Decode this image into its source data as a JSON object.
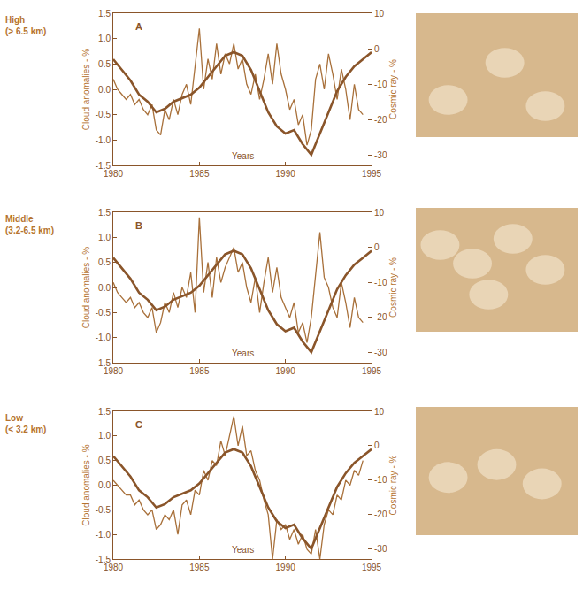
{
  "chart_data": [
    {
      "type": "line",
      "title": "High (> 6.5 km)",
      "panel": "A",
      "xlabel": "Years",
      "ylabel": "Cloud anomalies - %",
      "y2label": "Cosmic ray - %",
      "xlim": [
        1980,
        1995
      ],
      "xticks": [
        1980,
        1985,
        1990,
        1995
      ],
      "ylim": [
        -1.5,
        1.5
      ],
      "yticks": [
        -1.5,
        {
          "value": -1,
          "label": "-1.0"
        },
        -0.5,
        {
          "value": 0,
          "label": "0.0"
        },
        0.5,
        {
          "value": 1,
          "label": "1.0"
        },
        1.5
      ],
      "y2lim": [
        -33,
        10
      ],
      "y2ticks": [
        -30,
        -20,
        -10,
        0,
        10
      ],
      "grid": false,
      "series": [
        {
          "color": "#a8703a",
          "line_style": "solid",
          "x": [
            1980.0,
            1980.25,
            1980.5,
            1980.75,
            1981.0,
            1981.25,
            1981.5,
            1981.75,
            1982.0,
            1982.25,
            1982.5,
            1982.75,
            1983.0,
            1983.25,
            1983.5,
            1983.75,
            1984.0,
            1984.25,
            1984.5,
            1984.75,
            1985.0,
            1985.25,
            1985.5,
            1985.75,
            1986.0,
            1986.25,
            1986.5,
            1986.75,
            1987.0,
            1987.25,
            1987.5,
            1987.75,
            1988.0,
            1988.25,
            1988.5,
            1988.75,
            1989.0,
            1989.25,
            1989.5,
            1989.75,
            1990.0,
            1990.25,
            1990.5,
            1990.75,
            1991.0,
            1991.25,
            1991.5,
            1991.75,
            1992.0,
            1992.25,
            1992.5,
            1992.75,
            1993.0,
            1993.25,
            1993.5,
            1993.75,
            1994.0,
            1994.25,
            1994.5
          ],
          "values": [
            0.2,
            0.0,
            -0.1,
            -0.2,
            -0.1,
            -0.3,
            -0.2,
            -0.4,
            -0.5,
            -0.3,
            -0.8,
            -0.9,
            -0.4,
            -0.6,
            -0.2,
            -0.5,
            -0.1,
            0.1,
            -0.3,
            0.4,
            1.2,
            0.0,
            0.6,
            0.2,
            0.9,
            0.3,
            0.7,
            0.5,
            0.9,
            0.4,
            0.6,
            0.1,
            -0.1,
            0.3,
            -0.2,
            0.2,
            0.7,
            0.1,
            0.9,
            0.3,
            0.0,
            -0.4,
            -0.2,
            -0.7,
            -0.5,
            -1.1,
            -0.8,
            0.2,
            0.5,
            0.0,
            0.7,
            0.3,
            -0.2,
            0.4,
            0.0,
            -0.6,
            0.1,
            -0.4,
            -0.5
          ]
        },
        {
          "color": "#8a552a",
          "line_style": "solid",
          "axis": "y2",
          "x": [
            1980.0,
            1980.5,
            1981.0,
            1981.5,
            1982.0,
            1982.5,
            1983.0,
            1983.5,
            1984.0,
            1984.5,
            1985.0,
            1985.5,
            1986.0,
            1986.5,
            1987.0,
            1987.5,
            1988.0,
            1988.5,
            1989.0,
            1989.5,
            1990.0,
            1990.5,
            1991.0,
            1991.5,
            1992.0,
            1992.5,
            1993.0,
            1993.5,
            1994.0,
            1994.5,
            1995.0
          ],
          "values": [
            -3,
            -6,
            -9,
            -13,
            -15,
            -18,
            -17,
            -15,
            -14,
            -13,
            -11,
            -8,
            -5,
            -2,
            -1,
            -2,
            -6,
            -12,
            -18,
            -22,
            -24,
            -23,
            -27,
            -30,
            -24,
            -18,
            -12,
            -8,
            -5,
            -3,
            -1
          ]
        }
      ]
    },
    {
      "type": "line",
      "title": "Middle (3.2-6.5 km)",
      "panel": "B",
      "xlabel": "Years",
      "ylabel": "Cloud anomalies - %",
      "y2label": "Cosmic ray - %",
      "xlim": [
        1980,
        1995
      ],
      "xticks": [
        1980,
        1985,
        1990,
        1995
      ],
      "ylim": [
        -1.5,
        1.5
      ],
      "yticks": [
        -1.5,
        {
          "value": -1,
          "label": "-1.0"
        },
        -0.5,
        {
          "value": 0,
          "label": "0.0"
        },
        0.5,
        {
          "value": 1,
          "label": "1.0"
        },
        1.5
      ],
      "y2lim": [
        -33,
        10
      ],
      "y2ticks": [
        -30,
        -20,
        -10,
        0,
        10
      ],
      "grid": false,
      "series": [
        {
          "color": "#a8703a",
          "line_style": "solid",
          "x": [
            1980.0,
            1980.25,
            1980.5,
            1980.75,
            1981.0,
            1981.25,
            1981.5,
            1981.75,
            1982.0,
            1982.25,
            1982.5,
            1982.75,
            1983.0,
            1983.25,
            1983.5,
            1983.75,
            1984.0,
            1984.25,
            1984.5,
            1984.75,
            1985.0,
            1985.25,
            1985.5,
            1985.75,
            1986.0,
            1986.25,
            1986.5,
            1986.75,
            1987.0,
            1987.25,
            1987.5,
            1987.75,
            1988.0,
            1988.25,
            1988.5,
            1988.75,
            1989.0,
            1989.25,
            1989.5,
            1989.75,
            1990.0,
            1990.25,
            1990.5,
            1990.75,
            1991.0,
            1991.25,
            1991.5,
            1991.75,
            1992.0,
            1992.25,
            1992.5,
            1992.75,
            1993.0,
            1993.25,
            1993.5,
            1993.75,
            1994.0,
            1994.25,
            1994.5
          ],
          "values": [
            0.1,
            -0.1,
            -0.2,
            -0.3,
            -0.2,
            -0.4,
            -0.3,
            -0.5,
            -0.6,
            -0.4,
            -0.9,
            -0.7,
            -0.3,
            -0.5,
            -0.1,
            -0.4,
            0.0,
            -0.2,
            0.3,
            -0.5,
            1.4,
            -0.1,
            0.5,
            -0.2,
            0.6,
            0.1,
            0.4,
            0.6,
            0.8,
            0.3,
            0.5,
            0.0,
            -0.3,
            0.2,
            -0.5,
            0.1,
            0.6,
            -0.1,
            0.4,
            -0.2,
            -0.4,
            -0.6,
            -0.3,
            -0.9,
            -0.7,
            -1.1,
            -0.6,
            0.3,
            1.1,
            0.2,
            0.0,
            -0.4,
            -0.6,
            0.1,
            -0.3,
            -0.8,
            -0.2,
            -0.6,
            -0.7
          ]
        },
        {
          "color": "#8a552a",
          "line_style": "solid",
          "axis": "y2",
          "x": [
            1980.0,
            1980.5,
            1981.0,
            1981.5,
            1982.0,
            1982.5,
            1983.0,
            1983.5,
            1984.0,
            1984.5,
            1985.0,
            1985.5,
            1986.0,
            1986.5,
            1987.0,
            1987.5,
            1988.0,
            1988.5,
            1989.0,
            1989.5,
            1990.0,
            1990.5,
            1991.0,
            1991.5,
            1992.0,
            1992.5,
            1993.0,
            1993.5,
            1994.0,
            1994.5,
            1995.0
          ],
          "values": [
            -3,
            -6,
            -9,
            -13,
            -15,
            -18,
            -17,
            -15,
            -14,
            -13,
            -11,
            -8,
            -5,
            -2,
            -1,
            -2,
            -6,
            -12,
            -18,
            -22,
            -24,
            -23,
            -27,
            -30,
            -24,
            -18,
            -12,
            -8,
            -5,
            -3,
            -1
          ]
        }
      ]
    },
    {
      "type": "line",
      "title": "Low (< 3.2 km)",
      "panel": "C",
      "xlabel": "Years",
      "ylabel": "Cloud anomalies - %",
      "y2label": "Cosmic ray - %",
      "xlim": [
        1980,
        1995
      ],
      "xticks": [
        1980,
        1985,
        1990,
        1995
      ],
      "ylim": [
        -1.5,
        1.5
      ],
      "yticks": [
        -1.5,
        {
          "value": -1,
          "label": "-1.0"
        },
        -0.5,
        {
          "value": 0,
          "label": "0.0"
        },
        0.5,
        {
          "value": 1,
          "label": "1.0"
        },
        1.5
      ],
      "y2lim": [
        -33,
        10
      ],
      "y2ticks": [
        -30,
        -20,
        -10,
        0,
        10
      ],
      "grid": false,
      "series": [
        {
          "color": "#a8703a",
          "line_style": "solid",
          "x": [
            1980.0,
            1980.25,
            1980.5,
            1980.75,
            1981.0,
            1981.25,
            1981.5,
            1981.75,
            1982.0,
            1982.25,
            1982.5,
            1982.75,
            1983.0,
            1983.25,
            1983.5,
            1983.75,
            1984.0,
            1984.25,
            1984.5,
            1984.75,
            1985.0,
            1985.25,
            1985.5,
            1985.75,
            1986.0,
            1986.25,
            1986.5,
            1986.75,
            1987.0,
            1987.25,
            1987.5,
            1987.75,
            1988.0,
            1988.25,
            1988.5,
            1988.75,
            1989.0,
            1989.25,
            1989.5,
            1989.75,
            1990.0,
            1990.25,
            1990.5,
            1990.75,
            1991.0,
            1991.25,
            1991.5,
            1991.75,
            1992.0,
            1992.25,
            1992.5,
            1992.75,
            1993.0,
            1993.25,
            1993.5,
            1993.75,
            1994.0,
            1994.25,
            1994.5
          ],
          "values": [
            0.1,
            0.0,
            -0.1,
            -0.2,
            -0.2,
            -0.4,
            -0.3,
            -0.5,
            -0.6,
            -0.5,
            -0.9,
            -0.8,
            -0.6,
            -0.7,
            -0.5,
            -1.0,
            -0.4,
            -0.3,
            -0.6,
            -0.1,
            -0.2,
            0.3,
            0.1,
            0.5,
            0.4,
            0.9,
            0.6,
            1.0,
            1.4,
            0.8,
            1.2,
            0.6,
            0.7,
            0.3,
            0.1,
            -0.3,
            -0.6,
            -1.5,
            -0.7,
            -0.9,
            -0.8,
            -1.1,
            -0.9,
            -1.2,
            -1.0,
            -1.3,
            -1.4,
            -0.9,
            -1.5,
            -0.8,
            -0.5,
            -0.6,
            -0.2,
            -0.3,
            0.1,
            0.0,
            0.3,
            0.2,
            0.5
          ]
        },
        {
          "color": "#8a552a",
          "line_style": "solid",
          "axis": "y2",
          "x": [
            1980.0,
            1980.5,
            1981.0,
            1981.5,
            1982.0,
            1982.5,
            1983.0,
            1983.5,
            1984.0,
            1984.5,
            1985.0,
            1985.5,
            1986.0,
            1986.5,
            1987.0,
            1987.5,
            1988.0,
            1988.5,
            1989.0,
            1989.5,
            1990.0,
            1990.5,
            1991.0,
            1991.5,
            1992.0,
            1992.5,
            1993.0,
            1993.5,
            1994.0,
            1994.5,
            1995.0
          ],
          "values": [
            -3,
            -6,
            -9,
            -13,
            -15,
            -18,
            -17,
            -15,
            -14,
            -13,
            -11,
            -8,
            -5,
            -2,
            -1,
            -2,
            -6,
            -12,
            -18,
            -22,
            -24,
            -23,
            -27,
            -30,
            -24,
            -18,
            -12,
            -8,
            -5,
            -3,
            -1
          ]
        }
      ]
    }
  ]
}
